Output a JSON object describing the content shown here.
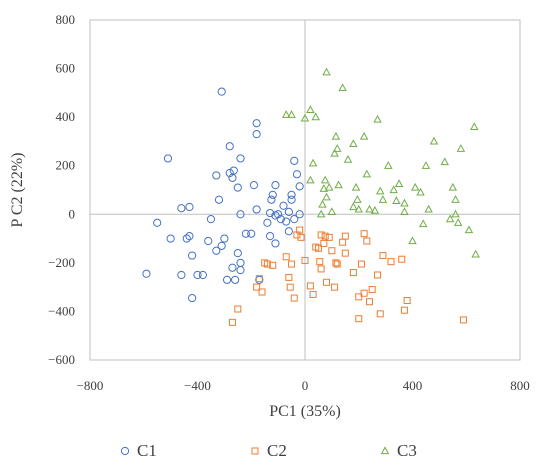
{
  "chart_data": {
    "type": "scatter",
    "title": "",
    "xlabel": "PC1 (35%)",
    "ylabel": "P C2 (22%)",
    "xlim": [
      -800,
      800
    ],
    "ylim": [
      -600,
      800
    ],
    "xticks": [
      -800,
      -400,
      0,
      400,
      800
    ],
    "yticks": [
      -600,
      -400,
      -200,
      0,
      200,
      400,
      600,
      800
    ],
    "grid": false,
    "zero_lines": true,
    "legend": "bottom",
    "series": [
      {
        "name": "C1",
        "marker": "circle",
        "color": "#4472C4",
        "points": [
          [
            -590,
            -245
          ],
          [
            -550,
            -35
          ],
          [
            -510,
            230
          ],
          [
            -500,
            -100
          ],
          [
            -460,
            25
          ],
          [
            -460,
            -250
          ],
          [
            -440,
            -100
          ],
          [
            -430,
            30
          ],
          [
            -430,
            -90
          ],
          [
            -420,
            -345
          ],
          [
            -420,
            -170
          ],
          [
            -400,
            -250
          ],
          [
            -380,
            -250
          ],
          [
            -360,
            -110
          ],
          [
            -350,
            -20
          ],
          [
            -330,
            -150
          ],
          [
            -330,
            160
          ],
          [
            -320,
            60
          ],
          [
            -310,
            505
          ],
          [
            -310,
            -130
          ],
          [
            -300,
            -100
          ],
          [
            -290,
            -270
          ],
          [
            -280,
            170
          ],
          [
            -280,
            280
          ],
          [
            -270,
            -220
          ],
          [
            -270,
            150
          ],
          [
            -265,
            180
          ],
          [
            -260,
            -270
          ],
          [
            -250,
            110
          ],
          [
            -250,
            -160
          ],
          [
            -240,
            230
          ],
          [
            -240,
            -230
          ],
          [
            -240,
            -200
          ],
          [
            -240,
            0
          ],
          [
            -220,
            -80
          ],
          [
            -200,
            -80
          ],
          [
            -190,
            120
          ],
          [
            -180,
            375
          ],
          [
            -180,
            330
          ],
          [
            -170,
            -270
          ],
          [
            -180,
            20
          ],
          [
            -140,
            -35
          ],
          [
            -130,
            -90
          ],
          [
            -130,
            5
          ],
          [
            -125,
            60
          ],
          [
            -120,
            80
          ],
          [
            -110,
            120
          ],
          [
            -110,
            -5
          ],
          [
            -110,
            -120
          ],
          [
            -100,
            0
          ],
          [
            -90,
            -20
          ],
          [
            -80,
            35
          ],
          [
            -70,
            -30
          ],
          [
            -60,
            10
          ],
          [
            -60,
            -70
          ],
          [
            -50,
            80
          ],
          [
            -50,
            60
          ],
          [
            -40,
            220
          ],
          [
            -40,
            -20
          ],
          [
            -30,
            165
          ],
          [
            -20,
            0
          ],
          [
            -20,
            115
          ]
        ]
      },
      {
        "name": "C2",
        "marker": "square",
        "color": "#ED7D31",
        "points": [
          [
            -270,
            -445
          ],
          [
            -250,
            -390
          ],
          [
            -180,
            -300
          ],
          [
            -170,
            -265
          ],
          [
            -160,
            -320
          ],
          [
            -150,
            -200
          ],
          [
            -140,
            -205
          ],
          [
            -120,
            -210
          ],
          [
            -70,
            -175
          ],
          [
            -60,
            -260
          ],
          [
            -55,
            -300
          ],
          [
            -50,
            -205
          ],
          [
            -40,
            -345
          ],
          [
            -30,
            -85
          ],
          [
            -20,
            -65
          ],
          [
            -15,
            -95
          ],
          [
            0,
            -190
          ],
          [
            20,
            -295
          ],
          [
            30,
            -330
          ],
          [
            40,
            -135
          ],
          [
            50,
            -140
          ],
          [
            55,
            -195
          ],
          [
            60,
            -225
          ],
          [
            60,
            -85
          ],
          [
            70,
            -120
          ],
          [
            75,
            -90
          ],
          [
            80,
            -280
          ],
          [
            90,
            -95
          ],
          [
            100,
            -150
          ],
          [
            110,
            -300
          ],
          [
            115,
            -200
          ],
          [
            120,
            -205
          ],
          [
            140,
            -115
          ],
          [
            150,
            -90
          ],
          [
            150,
            -160
          ],
          [
            180,
            -240
          ],
          [
            200,
            -340
          ],
          [
            200,
            -430
          ],
          [
            210,
            -205
          ],
          [
            220,
            -80
          ],
          [
            220,
            -325
          ],
          [
            230,
            -110
          ],
          [
            240,
            -360
          ],
          [
            250,
            -310
          ],
          [
            270,
            -250
          ],
          [
            280,
            -410
          ],
          [
            290,
            -170
          ],
          [
            320,
            -195
          ],
          [
            360,
            -185
          ],
          [
            370,
            -395
          ],
          [
            380,
            -355
          ],
          [
            590,
            -435
          ]
        ]
      },
      {
        "name": "C3",
        "marker": "triangle",
        "color": "#70AD47",
        "points": [
          [
            -70,
            410
          ],
          [
            -50,
            410
          ],
          [
            0,
            395
          ],
          [
            20,
            430
          ],
          [
            20,
            140
          ],
          [
            30,
            210
          ],
          [
            40,
            400
          ],
          [
            60,
            0
          ],
          [
            65,
            40
          ],
          [
            70,
            105
          ],
          [
            75,
            140
          ],
          [
            80,
            585
          ],
          [
            80,
            70
          ],
          [
            90,
            110
          ],
          [
            100,
            10
          ],
          [
            110,
            250
          ],
          [
            115,
            320
          ],
          [
            120,
            270
          ],
          [
            125,
            120
          ],
          [
            140,
            520
          ],
          [
            160,
            225
          ],
          [
            180,
            30
          ],
          [
            180,
            290
          ],
          [
            190,
            110
          ],
          [
            195,
            60
          ],
          [
            200,
            20
          ],
          [
            220,
            320
          ],
          [
            230,
            165
          ],
          [
            240,
            20
          ],
          [
            260,
            15
          ],
          [
            270,
            390
          ],
          [
            280,
            95
          ],
          [
            290,
            60
          ],
          [
            310,
            200
          ],
          [
            330,
            100
          ],
          [
            340,
            55
          ],
          [
            350,
            125
          ],
          [
            370,
            45
          ],
          [
            370,
            10
          ],
          [
            400,
            -110
          ],
          [
            410,
            110
          ],
          [
            430,
            90
          ],
          [
            440,
            -40
          ],
          [
            450,
            200
          ],
          [
            460,
            20
          ],
          [
            480,
            300
          ],
          [
            520,
            215
          ],
          [
            540,
            -20
          ],
          [
            550,
            110
          ],
          [
            560,
            60
          ],
          [
            560,
            0
          ],
          [
            570,
            -35
          ],
          [
            580,
            270
          ],
          [
            610,
            -65
          ],
          [
            630,
            360
          ],
          [
            635,
            -165
          ]
        ]
      }
    ]
  }
}
